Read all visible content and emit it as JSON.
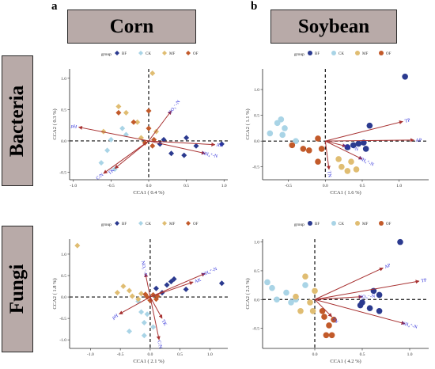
{
  "panel_labels": [
    "a",
    "b"
  ],
  "column_headers": [
    "Corn",
    "Soybean"
  ],
  "row_headers": [
    "Bacteria",
    "Fungi"
  ],
  "legend_title": "group",
  "groups": [
    {
      "name": "BF",
      "color": "#2b3a8f"
    },
    {
      "name": "CK",
      "color": "#a9d4e6"
    },
    {
      "name": "MF",
      "color": "#e0bd72"
    },
    {
      "name": "OF",
      "color": "#c25a2a"
    }
  ],
  "arrow_color": "#a83232",
  "label_color": "#2a2ad8",
  "chart_data": [
    {
      "type": "scatter",
      "panel": "corn-bacteria",
      "marker": "diamond",
      "xlabel": "CCA1 ( 0.4 %)",
      "ylabel": "CCA2 ( 0.3 %)",
      "xlim": [
        -1.05,
        1.05
      ],
      "ylim": [
        -0.62,
        1.15
      ],
      "xticks": [
        -1.0,
        -0.5,
        0.0,
        0.5,
        1.0
      ],
      "yticks": [
        -0.5,
        0.0,
        0.5,
        1.0
      ],
      "series": [
        {
          "name": "BF",
          "points": [
            [
              0.5,
              0.05
            ],
            [
              0.63,
              -0.08
            ],
            [
              0.3,
              -0.2
            ],
            [
              0.47,
              -0.23
            ],
            [
              0.97,
              -0.05
            ],
            [
              0.15,
              -0.05
            ],
            [
              0.2,
              0.02
            ]
          ]
        },
        {
          "name": "CK",
          "points": [
            [
              -0.63,
              -0.35
            ],
            [
              -0.55,
              -0.15
            ],
            [
              -0.45,
              -0.45
            ],
            [
              -0.35,
              0.2
            ],
            [
              -0.5,
              0.02
            ],
            [
              -0.3,
              0.1
            ]
          ]
        },
        {
          "name": "MF",
          "points": [
            [
              -0.4,
              0.55
            ],
            [
              0.05,
              1.08
            ],
            [
              -0.3,
              0.45
            ],
            [
              -0.15,
              0.3
            ],
            [
              0.1,
              0.15
            ],
            [
              -0.6,
              0.15
            ],
            [
              -0.1,
              0.05
            ]
          ]
        },
        {
          "name": "OF",
          "points": [
            [
              -0.4,
              0.45
            ],
            [
              0.0,
              0.2
            ],
            [
              0.05,
              -0.08
            ],
            [
              -0.2,
              0.3
            ],
            [
              0.0,
              0.48
            ],
            [
              0.07,
              0.02
            ],
            [
              -0.05,
              -0.03
            ]
          ]
        }
      ],
      "vectors": [
        {
          "label": "pH",
          "x": -0.93,
          "y": 0.22
        },
        {
          "label": "C/N",
          "x": -0.6,
          "y": -0.52
        },
        {
          "label": "TK",
          "x": -0.45,
          "y": -0.44
        },
        {
          "label": "NO₃⁻-N",
          "x": 0.3,
          "y": 0.48
        },
        {
          "label": "AK",
          "x": 0.88,
          "y": -0.06
        },
        {
          "label": "NH₄⁺-N",
          "x": 0.75,
          "y": -0.2
        }
      ]
    },
    {
      "type": "scatter",
      "panel": "soybean-bacteria",
      "marker": "circle",
      "xlabel": "CCA1 ( 1.6 %)",
      "ylabel": "CCA2 ( 1.1 %)",
      "xlim": [
        -0.85,
        1.4
      ],
      "ylim": [
        -0.75,
        1.4
      ],
      "xticks": [
        -0.5,
        0.0,
        0.5,
        1.0
      ],
      "yticks": [
        -0.5,
        0.0,
        0.5,
        1.0
      ],
      "series": [
        {
          "name": "BF",
          "points": [
            [
              1.08,
              1.25
            ],
            [
              0.6,
              0.3
            ],
            [
              0.45,
              -0.05
            ],
            [
              0.52,
              -0.03
            ],
            [
              0.38,
              -0.08
            ],
            [
              0.3,
              -0.12
            ],
            [
              0.55,
              -0.15
            ]
          ]
        },
        {
          "name": "CK",
          "points": [
            [
              -0.75,
              0.15
            ],
            [
              -0.65,
              0.35
            ],
            [
              -0.6,
              0.42
            ],
            [
              -0.55,
              0.25
            ],
            [
              -0.58,
              0.12
            ],
            [
              -0.4,
              0.0
            ]
          ]
        },
        {
          "name": "MF",
          "points": [
            [
              0.22,
              -0.5
            ],
            [
              0.3,
              -0.58
            ],
            [
              0.42,
              -0.55
            ],
            [
              0.18,
              -0.35
            ],
            [
              0.35,
              -0.4
            ]
          ]
        },
        {
          "name": "OF",
          "points": [
            [
              -0.45,
              -0.08
            ],
            [
              -0.3,
              -0.15
            ],
            [
              -0.1,
              0.05
            ],
            [
              -0.22,
              -0.18
            ],
            [
              -0.05,
              -0.15
            ],
            [
              -0.1,
              -0.4
            ]
          ]
        }
      ],
      "vectors": [
        {
          "label": "TP",
          "x": 1.05,
          "y": 0.38
        },
        {
          "label": "AP",
          "x": 1.2,
          "y": 0.02
        },
        {
          "label": "NO₃⁻-N",
          "x": 0.28,
          "y": -0.1
        },
        {
          "label": "NH₄⁺-N",
          "x": 0.5,
          "y": -0.35
        },
        {
          "label": "TN",
          "x": 0.05,
          "y": -0.55
        }
      ]
    },
    {
      "type": "scatter",
      "panel": "corn-fungi",
      "marker": "diamond",
      "xlabel": "CCA1 ( 2.1 %)",
      "ylabel": "CCA2 ( 1.8 %)",
      "xlim": [
        -1.35,
        1.3
      ],
      "ylim": [
        -1.2,
        1.35
      ],
      "xticks": [
        -1.0,
        -0.5,
        0.0,
        0.5,
        1.0
      ],
      "yticks": [
        -1.0,
        -0.5,
        0.0,
        0.5,
        1.0
      ],
      "series": [
        {
          "name": "BF",
          "points": [
            [
              1.2,
              0.32
            ],
            [
              0.4,
              0.42
            ],
            [
              0.35,
              0.36
            ],
            [
              0.6,
              0.18
            ],
            [
              0.28,
              0.28
            ],
            [
              0.2,
              0.1
            ],
            [
              0.1,
              0.2
            ]
          ]
        },
        {
          "name": "CK",
          "points": [
            [
              -0.35,
              -0.8
            ],
            [
              -0.15,
              -0.35
            ],
            [
              -0.1,
              -0.6
            ],
            [
              -0.05,
              -0.4
            ],
            [
              -0.2,
              -0.1
            ],
            [
              -0.1,
              -0.9
            ],
            [
              0.05,
              -0.7
            ]
          ]
        },
        {
          "name": "MF",
          "points": [
            [
              -1.22,
              1.2
            ],
            [
              -0.55,
              0.1
            ],
            [
              -0.35,
              0.15
            ],
            [
              -0.2,
              -0.05
            ],
            [
              -0.3,
              0.02
            ],
            [
              -0.45,
              0.25
            ],
            [
              -0.15,
              0.08
            ]
          ]
        },
        {
          "name": "OF",
          "points": [
            [
              0.05,
              0.05
            ],
            [
              0.1,
              -0.05
            ],
            [
              -0.05,
              0.0
            ],
            [
              0.0,
              -0.08
            ],
            [
              0.12,
              0.02
            ],
            [
              -0.08,
              0.06
            ]
          ]
        }
      ],
      "vectors": [
        {
          "label": "NO₃⁻-N",
          "x": -0.08,
          "y": 0.55
        },
        {
          "label": "AK",
          "x": 0.72,
          "y": 0.35
        },
        {
          "label": "NH₄⁺-N",
          "x": 0.92,
          "y": 0.55
        },
        {
          "label": "pH",
          "x": -0.52,
          "y": -0.4
        },
        {
          "label": "C/N",
          "x": 0.15,
          "y": -1.0
        },
        {
          "label": "TK",
          "x": 0.2,
          "y": -0.5
        }
      ]
    },
    {
      "type": "scatter",
      "panel": "soybean-fungi",
      "marker": "circle",
      "xlabel": "CCA1 ( 4.2 %)",
      "ylabel": "CCA2 ( 2.3 %)",
      "xlim": [
        -0.55,
        1.2
      ],
      "ylim": [
        -0.85,
        1.05
      ],
      "xticks": [
        0.0,
        0.5,
        1.0
      ],
      "yticks": [
        -0.5,
        0.0,
        0.5,
        1.0
      ],
      "series": [
        {
          "name": "BF",
          "points": [
            [
              0.9,
              1.0
            ],
            [
              0.62,
              0.15
            ],
            [
              0.68,
              0.08
            ],
            [
              0.5,
              -0.05
            ],
            [
              0.58,
              -0.15
            ],
            [
              0.48,
              -0.1
            ],
            [
              0.68,
              -0.2
            ]
          ]
        },
        {
          "name": "CK",
          "points": [
            [
              -0.5,
              0.3
            ],
            [
              -0.4,
              0.0
            ],
            [
              -0.45,
              0.2
            ],
            [
              -0.3,
              0.12
            ],
            [
              -0.2,
              0.0
            ],
            [
              -0.1,
              0.25
            ],
            [
              -0.25,
              -0.05
            ]
          ]
        },
        {
          "name": "MF",
          "points": [
            [
              -0.1,
              0.4
            ],
            [
              -0.2,
              0.05
            ],
            [
              -0.05,
              -0.05
            ],
            [
              0.0,
              0.15
            ],
            [
              -0.02,
              -0.2
            ],
            [
              -0.15,
              -0.2
            ]
          ]
        },
        {
          "name": "OF",
          "points": [
            [
              0.12,
              -0.62
            ],
            [
              0.15,
              -0.45
            ],
            [
              0.1,
              -0.3
            ],
            [
              0.2,
              -0.35
            ],
            [
              0.18,
              -0.62
            ],
            [
              0.08,
              -0.2
            ]
          ]
        }
      ],
      "vectors": [
        {
          "label": "AP",
          "x": 0.72,
          "y": 0.55
        },
        {
          "label": "TP",
          "x": 1.1,
          "y": 0.32
        },
        {
          "label": "NO₃⁻-N",
          "x": 0.5,
          "y": 0.05
        },
        {
          "label": "NH₄⁺-N",
          "x": 0.95,
          "y": -0.42
        },
        {
          "label": "TN",
          "x": 0.18,
          "y": -0.3
        }
      ]
    }
  ]
}
